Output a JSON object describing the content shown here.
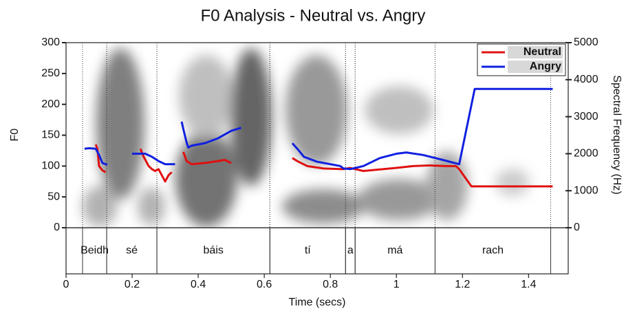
{
  "chart_data": {
    "type": "line",
    "title": "F0 Analysis - Neutral vs. Angry",
    "x_label": "Time (secs)",
    "y_label": "F0",
    "y2_label": "Spectral Frequency (Hz)",
    "xlim": [
      0,
      1.52
    ],
    "xticks": [
      0,
      0.2,
      0.4,
      0.6,
      0.8,
      1,
      1.2,
      1.4
    ],
    "ylim": [
      0,
      300
    ],
    "yticks": [
      0,
      50,
      100,
      150,
      200,
      250,
      300
    ],
    "y2lim": [
      0,
      5000
    ],
    "y2ticks": [
      0,
      1000,
      2000,
      3000,
      4000,
      5000
    ],
    "legend": "top-right",
    "series": [
      {
        "name": "Neutral",
        "color": "#e01010",
        "x": [
          0.09,
          0.095,
          0.1,
          0.11,
          0.12,
          null,
          0.225,
          0.235,
          0.25,
          0.26,
          0.27,
          0.28,
          0.29,
          0.3,
          0.31,
          0.32,
          null,
          0.355,
          0.365,
          0.38,
          0.42,
          0.46,
          0.48,
          0.5,
          null,
          0.685,
          0.7,
          0.73,
          0.78,
          0.84,
          0.86,
          0.9,
          1.0,
          1.05,
          1.1,
          1.15,
          1.18,
          1.19,
          1.227,
          1.3,
          1.473
        ],
        "values": [
          135,
          128,
          100,
          93,
          90,
          null,
          128,
          115,
          100,
          95,
          92,
          95,
          85,
          75,
          85,
          90,
          null,
          123,
          108,
          103,
          105,
          108,
          110,
          105,
          null,
          113,
          108,
          100,
          96,
          95,
          97,
          92,
          97,
          100,
          101,
          100,
          100,
          95,
          67,
          67,
          67
        ]
      },
      {
        "name": "Angry",
        "color": "#1020e0",
        "x": [
          0.056,
          0.07,
          0.09,
          0.1,
          0.11,
          0.125,
          null,
          0.2,
          0.24,
          0.26,
          0.28,
          0.3,
          0.33,
          null,
          0.35,
          0.355,
          0.365,
          0.37,
          0.38,
          0.42,
          0.46,
          0.5,
          0.53,
          null,
          0.685,
          0.7,
          0.72,
          0.76,
          0.8,
          0.83,
          0.84,
          0.86,
          0.9,
          0.95,
          1.0,
          1.03,
          1.08,
          1.14,
          1.19,
          1.237,
          1.3,
          1.473
        ],
        "values": [
          128,
          129,
          128,
          118,
          105,
          102,
          null,
          120,
          120,
          115,
          108,
          103,
          103,
          null,
          172,
          160,
          138,
          130,
          133,
          137,
          145,
          157,
          162,
          null,
          137,
          128,
          115,
          107,
          103,
          100,
          96,
          95,
          100,
          113,
          120,
          122,
          118,
          110,
          103,
          225,
          225,
          225
        ]
      }
    ],
    "intervals": [
      {
        "label": "Beidh",
        "start": 0.05,
        "end": 0.123
      },
      {
        "label": "sé",
        "start": 0.123,
        "end": 0.275
      },
      {
        "label": "báis",
        "start": 0.275,
        "end": 0.617
      },
      {
        "label": "tí",
        "start": 0.617,
        "end": 0.846
      },
      {
        "label": "a",
        "start": 0.846,
        "end": 0.875
      },
      {
        "label": "má",
        "start": 0.875,
        "end": 1.117
      },
      {
        "label": "rach",
        "start": 1.117,
        "end": 1.467
      }
    ]
  }
}
